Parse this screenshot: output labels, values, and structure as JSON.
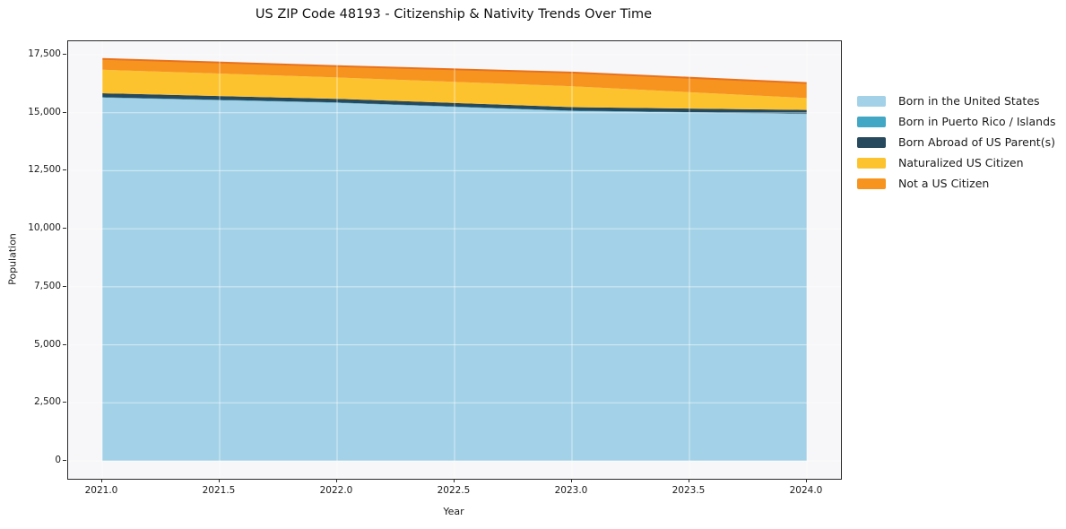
{
  "title": "US ZIP Code 48193 - Citizenship & Nativity Trends Over Time",
  "chart_data": {
    "type": "area",
    "stacked": true,
    "title": "US ZIP Code 48193 - Citizenship & Nativity Trends Over Time",
    "xlabel": "Year",
    "ylabel": "Population",
    "x": [
      2021,
      2022,
      2023,
      2024
    ],
    "series": [
      {
        "name": "Born in the United States",
        "color": "#a3d2e8",
        "values": [
          15650,
          15420,
          15070,
          14940
        ]
      },
      {
        "name": "Born in Puerto Rico / Islands",
        "color": "#42a7c4",
        "values": [
          20,
          20,
          20,
          20
        ]
      },
      {
        "name": "Born Abroad of US Parent(s)",
        "color": "#26495d",
        "values": [
          170,
          160,
          150,
          160
        ]
      },
      {
        "name": "Naturalized US Citizen",
        "color": "#fdc32f",
        "values": [
          1010,
          920,
          900,
          510
        ]
      },
      {
        "name": "Not a US Citizen",
        "color": "#f79420",
        "values": [
          470,
          490,
          590,
          650
        ]
      }
    ],
    "top_edge_color": "#e8721c",
    "xticks": [
      "2021.0",
      "2021.5",
      "2022.0",
      "2022.5",
      "2023.0",
      "2023.5",
      "2024.0"
    ],
    "yticks": [
      "0",
      "2,500",
      "5,000",
      "7,500",
      "10,000",
      "12,500",
      "15,000",
      "17,500"
    ],
    "xlim": [
      2021.0,
      2024.0
    ],
    "ylim": [
      0,
      17500
    ],
    "grid": true,
    "legend_position": "right"
  }
}
